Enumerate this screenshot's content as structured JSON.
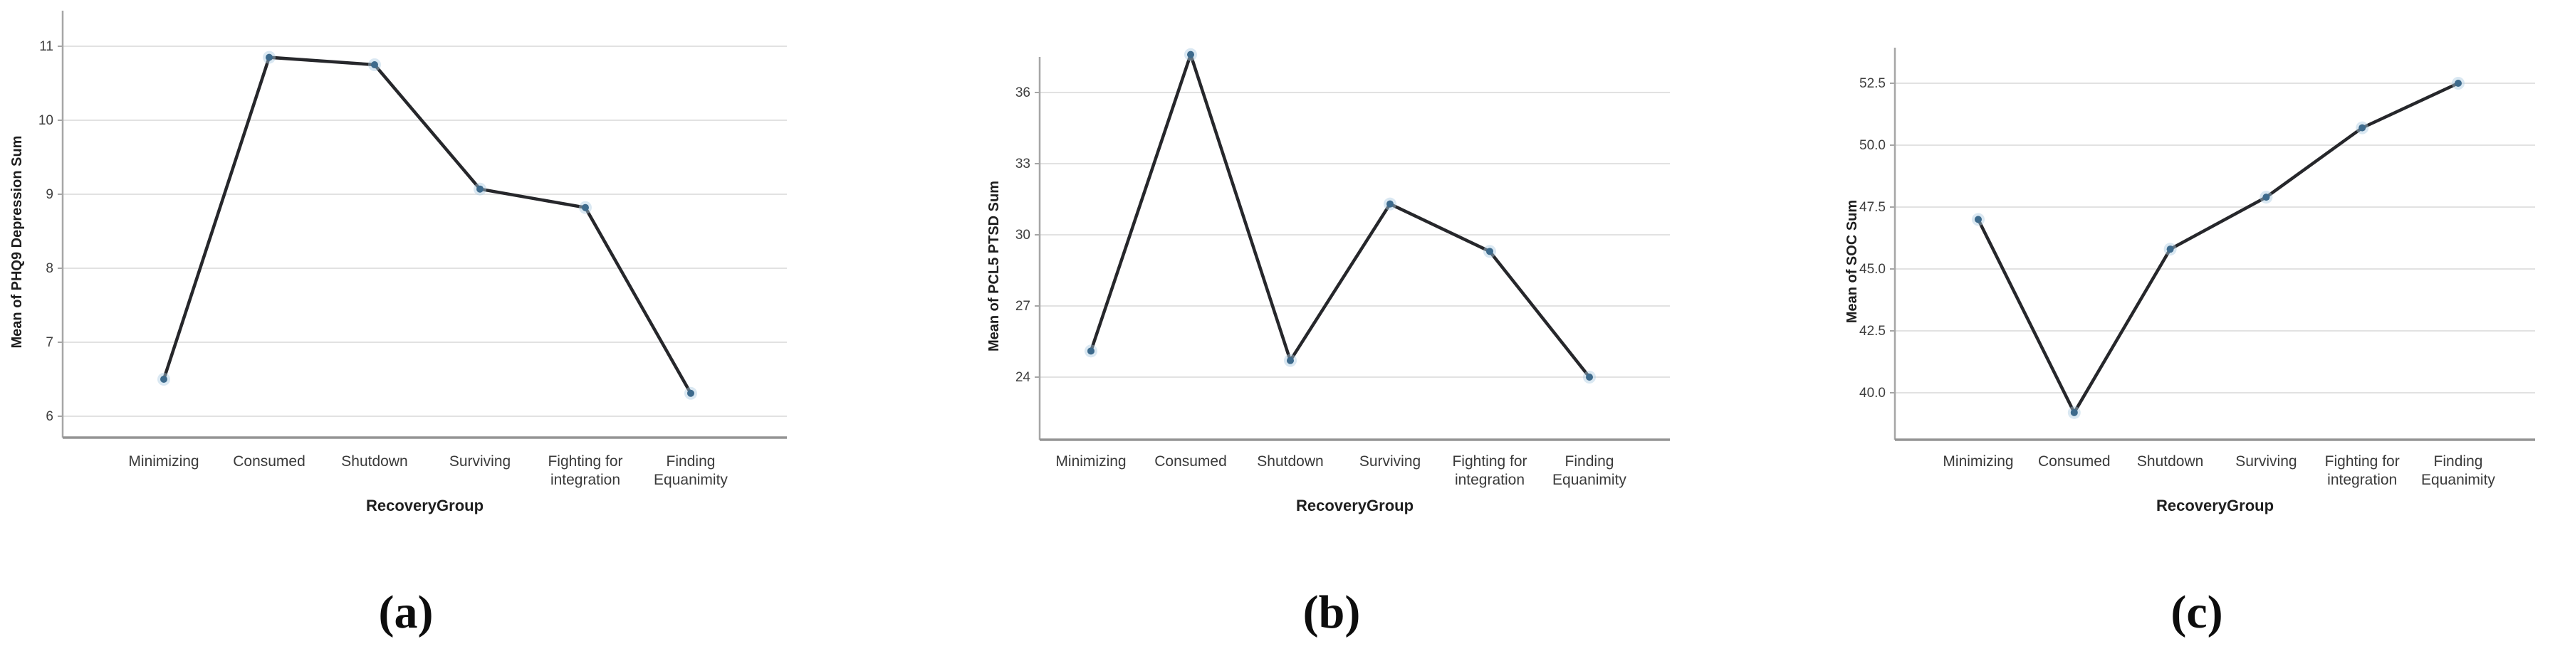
{
  "figure": {
    "captions": [
      "(a)",
      "(b)",
      "(c)"
    ]
  },
  "colors": {
    "background": "#ffffff",
    "line": "#26272b",
    "marker": "#3d6a8c",
    "marker_halo": "#aecde3",
    "gridline": "#d9d9d9",
    "axis": "#a6a6a6",
    "tick_text": "#3f3f3f",
    "label_text": "#1f1f1f"
  },
  "chart_data": [
    {
      "type": "line",
      "title": "",
      "ylabel": "Mean of PHQ9 Depression Sum",
      "xlabel": "RecoveryGroup",
      "categories": [
        "Minimizing",
        "Consumed",
        "Shutdown",
        "Surviving",
        "Fighting for integration",
        "Finding Equanimity"
      ],
      "category_lines": [
        [
          "Minimizing"
        ],
        [
          "Consumed"
        ],
        [
          "Shutdown"
        ],
        [
          "Surviving"
        ],
        [
          "Fighting for",
          "integration"
        ],
        [
          "Finding",
          "Equanimity"
        ]
      ],
      "values": [
        6.5,
        10.85,
        10.75,
        9.07,
        8.82,
        6.31
      ],
      "yticks": [
        11,
        10,
        9,
        8,
        7,
        6
      ],
      "ytick_labels": [
        "11",
        "10",
        "9",
        "8",
        "7",
        "6"
      ],
      "ylim": [
        5.6,
        11.4
      ],
      "grid": true,
      "legend": null
    },
    {
      "type": "line",
      "title": "",
      "ylabel": "Mean of PCL5 PTSD Sum",
      "xlabel": "RecoveryGroup",
      "categories": [
        "Minimizing",
        "Consumed",
        "Shutdown",
        "Surviving",
        "Fighting for integration",
        "Finding Equanimity"
      ],
      "category_lines": [
        [
          "Minimizing"
        ],
        [
          "Consumed"
        ],
        [
          "Shutdown"
        ],
        [
          "Surviving"
        ],
        [
          "Fighting for",
          "integration"
        ],
        [
          "Finding",
          "Equanimity"
        ]
      ],
      "values": [
        25.1,
        37.6,
        24.7,
        31.3,
        29.3,
        24.0
      ],
      "yticks": [
        36,
        33,
        30,
        27,
        24
      ],
      "ytick_labels": [
        "36",
        "33",
        "30",
        "27",
        "24"
      ],
      "ylim": [
        21.5,
        38.5
      ],
      "grid": true,
      "legend": null
    },
    {
      "type": "line",
      "title": "",
      "ylabel": "Mean of SOC Sum",
      "xlabel": "RecoveryGroup",
      "categories": [
        "Minimizing",
        "Consumed",
        "Shutdown",
        "Surviving",
        "Fighting for integration",
        "Finding Equanimity"
      ],
      "category_lines": [
        [
          "Minimizing"
        ],
        [
          "Consumed"
        ],
        [
          "Shutdown"
        ],
        [
          "Surviving"
        ],
        [
          "Fighting for",
          "integration"
        ],
        [
          "Finding",
          "Equanimity"
        ]
      ],
      "values": [
        47.0,
        39.2,
        45.8,
        47.9,
        50.7,
        52.5
      ],
      "yticks": [
        52.5,
        50.0,
        47.5,
        45.0,
        42.5,
        40.0
      ],
      "ytick_labels": [
        "52.5",
        "50.0",
        "47.5",
        "45.0",
        "42.5",
        "40.0"
      ],
      "ylim": [
        37.5,
        54.5
      ],
      "grid": true,
      "legend": null
    }
  ]
}
